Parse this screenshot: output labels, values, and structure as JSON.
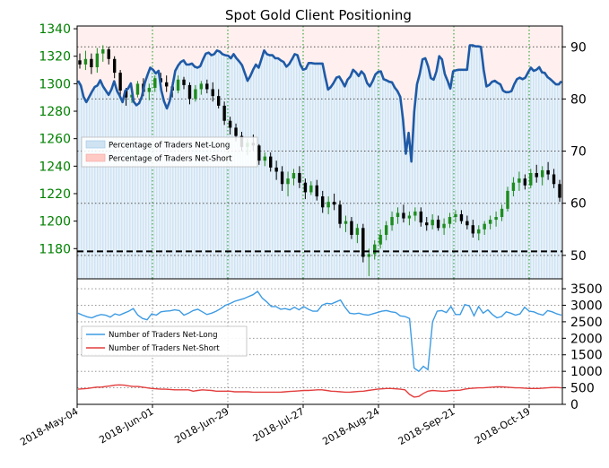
{
  "chart_data": {
    "title": "Spot Gold Client Positioning",
    "type": "candlestick+line",
    "x_ticks": [
      "2018-May-04",
      "2018-Jun-01",
      "2018-Jun-29",
      "2018-Jul-27",
      "2018-Aug-24",
      "2018-Sep-21",
      "2018-Oct-19"
    ],
    "top_panel": {
      "left_axis": {
        "ticks": [
          1180,
          1200,
          1220,
          1240,
          1260,
          1280,
          1300,
          1320,
          1340
        ],
        "ylim": [
          1158,
          1342
        ],
        "color": "#008000"
      },
      "right_axis": {
        "ticks": [
          50,
          60,
          70,
          80,
          90
        ],
        "ylim": [
          45.5,
          94
        ]
      },
      "legend": {
        "placement": "left-center",
        "entries": [
          "Percentage of Traders Net-Long",
          "Percentage of Traders Net-Short"
        ]
      },
      "reference_level": 1178,
      "net_long_pct": [
        83.5,
        82.6,
        80.4,
        79.4,
        80.4,
        81.4,
        82.3,
        82.6,
        83.6,
        82.4,
        81.6,
        80.8,
        81.8,
        83.4,
        81.6,
        80.6,
        79.4,
        81.6,
        82.0,
        83.0,
        79.5,
        78.8,
        79.2,
        80.5,
        83.0,
        84.6,
        86.0,
        85.6,
        84.9,
        85.4,
        81.6,
        79.5,
        78.2,
        79.6,
        82.5,
        85.4,
        86.4,
        87.1,
        87.4,
        86.6,
        86.6,
        86.8,
        86.2,
        86.0,
        86.3,
        87.6,
        88.7,
        88.9,
        88.4,
        88.6,
        89.3,
        89.1,
        88.6,
        88.4,
        88.3,
        87.8,
        88.6,
        87.8,
        87.2,
        86.5,
        85.0,
        83.5,
        84.4,
        85.6,
        86.6,
        86.0,
        87.6,
        89.3,
        88.6,
        88.4,
        88.4,
        87.8,
        87.8,
        87.4,
        87.1,
        86.2,
        86.7,
        87.6,
        88.6,
        88.4,
        86.6,
        85.6,
        85.8,
        86.9,
        86.9,
        86.8,
        86.8,
        86.8,
        86.8,
        84.2,
        81.8,
        82.3,
        83.1,
        84.1,
        84.3,
        83.4,
        82.4,
        83.7,
        84.3,
        85.6,
        85.1,
        84.4,
        85.3,
        84.7,
        83.1,
        82.4,
        83.4,
        84.7,
        85.2,
        85.3,
        83.8,
        83.6,
        83.3,
        83.2,
        82.2,
        81.5,
        80.4,
        76.0,
        69.5,
        73.5,
        68.0,
        77.5,
        82.8,
        84.8,
        87.6,
        87.8,
        86.3,
        84.0,
        83.7,
        85.3,
        88.2,
        87.6,
        84.8,
        83.5,
        82.0,
        85.3,
        85.5,
        85.6,
        85.6,
        85.6,
        85.6,
        90.3,
        90.3,
        90.1,
        90.1,
        90.0,
        85.6,
        82.4,
        82.7,
        83.3,
        83.5,
        83.1,
        82.8,
        81.6,
        81.3,
        81.3,
        81.5,
        82.8,
        83.8,
        84.1,
        83.8,
        84.1,
        85.1,
        86.0,
        85.4,
        85.6,
        86.1,
        85.1,
        85.0,
        84.2,
        83.8,
        83.3,
        82.8,
        82.8,
        83.4
      ],
      "candles": [
        [
          1317,
          1322,
          1311,
          1314
        ],
        [
          1314,
          1324,
          1310,
          1318
        ],
        [
          1318,
          1322,
          1307,
          1312
        ],
        [
          1312,
          1326,
          1308,
          1322
        ],
        [
          1322,
          1328,
          1316,
          1325
        ],
        [
          1325,
          1327,
          1314,
          1318
        ],
        [
          1318,
          1320,
          1304,
          1308
        ],
        [
          1308,
          1310,
          1291,
          1295
        ],
        [
          1295,
          1297,
          1284,
          1290
        ],
        [
          1290,
          1297,
          1286,
          1292
        ],
        [
          1292,
          1302,
          1290,
          1300
        ],
        [
          1300,
          1304,
          1291,
          1294
        ],
        [
          1294,
          1300,
          1288,
          1297
        ],
        [
          1297,
          1306,
          1294,
          1304
        ],
        [
          1304,
          1308,
          1298,
          1301
        ],
        [
          1301,
          1306,
          1294,
          1298
        ],
        [
          1298,
          1301,
          1290,
          1295
        ],
        [
          1295,
          1306,
          1293,
          1303
        ],
        [
          1303,
          1305,
          1296,
          1299
        ],
        [
          1299,
          1301,
          1285,
          1289
        ],
        [
          1289,
          1299,
          1287,
          1296
        ],
        [
          1296,
          1302,
          1292,
          1300
        ],
        [
          1300,
          1303,
          1293,
          1296
        ],
        [
          1296,
          1301,
          1287,
          1291
        ],
        [
          1291,
          1296,
          1282,
          1284
        ],
        [
          1284,
          1287,
          1270,
          1273
        ],
        [
          1273,
          1276,
          1263,
          1268
        ],
        [
          1268,
          1271,
          1258,
          1262
        ],
        [
          1262,
          1265,
          1251,
          1254
        ],
        [
          1254,
          1260,
          1248,
          1257
        ],
        [
          1257,
          1263,
          1251,
          1255
        ],
        [
          1255,
          1256,
          1241,
          1244
        ],
        [
          1244,
          1250,
          1240,
          1247
        ],
        [
          1247,
          1250,
          1236,
          1239
        ],
        [
          1239,
          1244,
          1230,
          1236
        ],
        [
          1236,
          1240,
          1222,
          1227
        ],
        [
          1227,
          1236,
          1218,
          1231
        ],
        [
          1231,
          1238,
          1226,
          1235
        ],
        [
          1235,
          1240,
          1224,
          1228
        ],
        [
          1228,
          1231,
          1216,
          1221
        ],
        [
          1221,
          1229,
          1219,
          1226
        ],
        [
          1226,
          1230,
          1215,
          1218
        ],
        [
          1218,
          1222,
          1206,
          1210
        ],
        [
          1210,
          1218,
          1205,
          1214
        ],
        [
          1214,
          1220,
          1208,
          1212
        ],
        [
          1212,
          1215,
          1195,
          1198
        ],
        [
          1198,
          1204,
          1192,
          1200
        ],
        [
          1200,
          1203,
          1187,
          1190
        ],
        [
          1190,
          1198,
          1184,
          1195
        ],
        [
          1195,
          1198,
          1170,
          1174
        ],
        [
          1174,
          1180,
          1160,
          1176
        ],
        [
          1176,
          1186,
          1172,
          1183
        ],
        [
          1183,
          1194,
          1180,
          1190
        ],
        [
          1190,
          1200,
          1186,
          1197
        ],
        [
          1197,
          1207,
          1193,
          1203
        ],
        [
          1203,
          1210,
          1198,
          1206
        ],
        [
          1206,
          1212,
          1199,
          1202
        ],
        [
          1202,
          1207,
          1197,
          1204
        ],
        [
          1204,
          1210,
          1200,
          1207
        ],
        [
          1207,
          1210,
          1196,
          1199
        ],
        [
          1199,
          1203,
          1193,
          1197
        ],
        [
          1197,
          1205,
          1194,
          1201
        ],
        [
          1201,
          1204,
          1193,
          1195
        ],
        [
          1195,
          1202,
          1190,
          1198
        ],
        [
          1198,
          1206,
          1195,
          1203
        ],
        [
          1203,
          1208,
          1199,
          1205
        ],
        [
          1205,
          1208,
          1198,
          1200
        ],
        [
          1200,
          1204,
          1194,
          1197
        ],
        [
          1197,
          1201,
          1188,
          1191
        ],
        [
          1191,
          1197,
          1186,
          1194
        ],
        [
          1194,
          1200,
          1190,
          1198
        ],
        [
          1198,
          1204,
          1194,
          1201
        ],
        [
          1201,
          1207,
          1196,
          1203
        ],
        [
          1203,
          1212,
          1200,
          1209
        ],
        [
          1209,
          1225,
          1207,
          1222
        ],
        [
          1222,
          1232,
          1218,
          1228
        ],
        [
          1228,
          1236,
          1222,
          1231
        ],
        [
          1231,
          1234,
          1223,
          1226
        ],
        [
          1226,
          1238,
          1224,
          1235
        ],
        [
          1235,
          1241,
          1228,
          1232
        ],
        [
          1232,
          1240,
          1226,
          1237
        ],
        [
          1237,
          1243,
          1230,
          1234
        ],
        [
          1234,
          1238,
          1224,
          1227
        ],
        [
          1227,
          1230,
          1214,
          1217
        ]
      ]
    },
    "bottom_panel": {
      "right_axis": {
        "ticks": [
          0,
          500,
          1000,
          1500,
          2000,
          2500,
          3000,
          3500
        ],
        "ylim": [
          0,
          3800
        ]
      },
      "legend": {
        "placement": "left-center"
      },
      "series": [
        {
          "name": "Number of Traders Net-Long",
          "color": "#3d9be3",
          "values": [
            2760,
            2700,
            2650,
            2620,
            2680,
            2720,
            2700,
            2640,
            2740,
            2700,
            2760,
            2820,
            2900,
            2700,
            2600,
            2560,
            2740,
            2700,
            2800,
            2820,
            2830,
            2860,
            2840,
            2700,
            2760,
            2840,
            2880,
            2800,
            2720,
            2760,
            2820,
            2900,
            3000,
            3050,
            3120,
            3160,
            3200,
            3260,
            3320,
            3420,
            3220,
            3100,
            2960,
            2960,
            2880,
            2900,
            2860,
            2940,
            2860,
            2960,
            2880,
            2820,
            2820,
            3000,
            3060,
            3040,
            3100,
            3160,
            2940,
            2760,
            2740,
            2760,
            2720,
            2700,
            2740,
            2780,
            2820,
            2840,
            2800,
            2780,
            2680,
            2660,
            2600,
            1100,
            1000,
            1150,
            1050,
            2500,
            2820,
            2840,
            2780,
            2960,
            2720,
            2720,
            3020,
            2980,
            2680,
            2960,
            2760,
            2860,
            2720,
            2620,
            2660,
            2800,
            2760,
            2700,
            2740,
            2940,
            2820,
            2800,
            2740,
            2700,
            2840,
            2800,
            2740,
            2700
          ]
        },
        {
          "name": "Number of Traders Net-Short",
          "color": "#e33d3d",
          "values": [
            460,
            470,
            480,
            500,
            520,
            520,
            540,
            560,
            580,
            590,
            580,
            560,
            540,
            540,
            520,
            500,
            480,
            470,
            460,
            460,
            450,
            440,
            440,
            440,
            440,
            400,
            420,
            440,
            430,
            420,
            400,
            400,
            400,
            400,
            380,
            380,
            380,
            380,
            370,
            370,
            370,
            370,
            370,
            370,
            370,
            380,
            390,
            400,
            410,
            420,
            420,
            430,
            440,
            440,
            420,
            400,
            390,
            380,
            370,
            370,
            380,
            390,
            400,
            420,
            440,
            460,
            470,
            480,
            480,
            470,
            460,
            440,
            300,
            220,
            240,
            330,
            400,
            420,
            410,
            400,
            400,
            420,
            420,
            430,
            460,
            480,
            490,
            500,
            500,
            510,
            520,
            530,
            530,
            520,
            510,
            500,
            500,
            490,
            480,
            480,
            480,
            490,
            500,
            510,
            510,
            500
          ]
        }
      ]
    }
  }
}
